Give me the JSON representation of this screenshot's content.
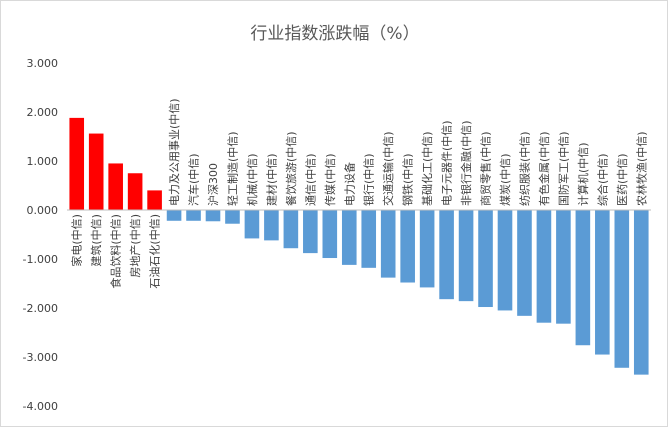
{
  "chart_data": {
    "type": "bar",
    "title": "行业指数涨跌幅（%）",
    "xlabel": "",
    "ylabel": "",
    "ylim": [
      -4,
      3
    ],
    "yticks": [
      3,
      2,
      1,
      0,
      -1,
      -2,
      -3,
      -4
    ],
    "ytick_labels": [
      "3.000",
      "2.000",
      "1.000",
      "0.000",
      "-1.000",
      "-2.000",
      "-3.000",
      "-4.000"
    ],
    "grid": false,
    "legend": "none",
    "categories": [
      "家电(中信)",
      "建筑(中信)",
      "食品饮料(中信)",
      "房地产(中信)",
      "石油石化(中信)",
      "电力及公用事业(中信)",
      "汽车(中信)",
      "沪深300",
      "轻工制造(中信)",
      "机械(中信)",
      "建材(中信)",
      "餐饮旅游(中信)",
      "通信(中信)",
      "传媒(中信)",
      "电力设备",
      "银行(中信)",
      "交通运输(中信)",
      "钢铁(中信)",
      "基础化工(中信)",
      "电子元器件(中信)",
      "非银行金融(中信)",
      "商贸零售(中信)",
      "煤炭(中信)",
      "纺织服装(中信)",
      "有色金属(中信)",
      "国防军工(中信)",
      "计算机(中信)",
      "综合(中信)",
      "医药(中信)",
      "农林牧渔(中信)"
    ],
    "values": [
      1.88,
      1.56,
      0.95,
      0.75,
      0.4,
      -0.22,
      -0.22,
      -0.23,
      -0.28,
      -0.58,
      -0.62,
      -0.78,
      -0.88,
      -0.98,
      -1.12,
      -1.18,
      -1.38,
      -1.48,
      -1.58,
      -1.82,
      -1.86,
      -1.98,
      -2.05,
      -2.16,
      -2.3,
      -2.32,
      -2.76,
      -2.95,
      -3.22,
      -3.36
    ],
    "colors": {
      "positive": "#ff0000",
      "negative": "#5b9bd5",
      "axis": "#bfbfbf",
      "text": "#404040",
      "title": "#595959"
    }
  }
}
